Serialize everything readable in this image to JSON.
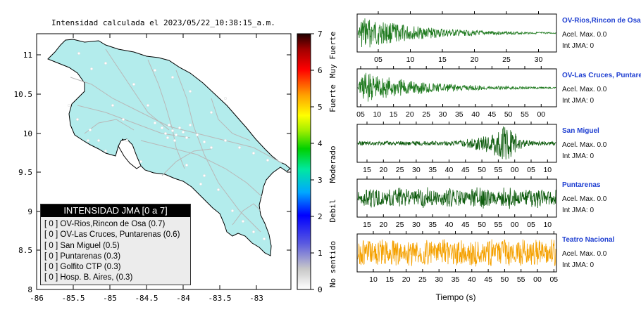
{
  "map": {
    "title": "Intensidad calculada el 2023/05/22_10:38:15_a.m.",
    "xticks": [
      "-86",
      "-85.5",
      "-85",
      "-84.5",
      "-84",
      "-83.5",
      "-83"
    ],
    "yticks": [
      "11",
      "10.5",
      "10",
      "9.5",
      "9",
      "8.5",
      "8"
    ],
    "colors": {
      "land": "#b3ecec",
      "roads": "#b8b8b8",
      "border": "#000000"
    }
  },
  "colorbar": {
    "ticks": [
      "7",
      "6",
      "5",
      "4",
      "3",
      "2",
      "1",
      "0"
    ],
    "labels": [
      "Muy Fuerte",
      "Fuerte",
      "Moderado",
      "Debil",
      "No sentido"
    ]
  },
  "legend": {
    "title": "INTENSIDAD JMA [0 a 7]",
    "items": [
      "[ 0 ]  OV-Rios,Rincon de Osa (0.7)",
      "[ 0 ]  OV-Las Cruces, Puntarenas (0.6)",
      "[ 0 ]  San Miguel (0.5)",
      "[ 0 ]  Puntarenas (0.3)",
      "[ 0 ]  Golfito CTP (0.3)",
      "[ 0 ]  Hosp. B. Aires, (0.3)"
    ]
  },
  "traces": [
    {
      "name": "OV-Rios,Rincon de Osa",
      "accel": "Acel. Max. 0.0",
      "jma": "Int JMA: 0",
      "ticks": [
        "05",
        "10",
        "15",
        "20",
        "25",
        "30"
      ],
      "color": "#1f7a1f",
      "envelope": "decay"
    },
    {
      "name": "OV-Las Cruces, Puntarenas",
      "accel": "Acel. Max. 0.0",
      "jma": "Int JMA: 0",
      "ticks": [
        "05",
        "10",
        "15",
        "20",
        "25",
        "30",
        "35",
        "40",
        "45",
        "50",
        "55",
        "00"
      ],
      "color": "#1f7a1f",
      "envelope": "decay"
    },
    {
      "name": "San Miguel",
      "accel": "Acel. Max. 0.0",
      "jma": "Int JMA: 0",
      "ticks": [
        "15",
        "20",
        "25",
        "30",
        "35",
        "40",
        "45",
        "50",
        "55",
        "00",
        "05",
        "10"
      ],
      "color": "#0e5c0e",
      "envelope": "late"
    },
    {
      "name": "Puntarenas",
      "accel": "Acel. Max. 0.0",
      "jma": "Int JMA: 0",
      "ticks": [
        "15",
        "20",
        "25",
        "30",
        "35",
        "40",
        "45",
        "50",
        "55",
        "00",
        "05",
        "10"
      ],
      "color": "#0e5c0e",
      "envelope": "noise"
    },
    {
      "name": "Teatro Nacional",
      "accel": "Acel. Max. 0.0",
      "jma": "Int JMA: 0",
      "ticks": [
        "10",
        "15",
        "20",
        "25",
        "30",
        "35",
        "40",
        "45",
        "50",
        "55",
        "00",
        "05"
      ],
      "color": "#f5a100",
      "envelope": "band"
    }
  ],
  "xlabel": "Tiempo (s)",
  "chart_data": {
    "type": "line",
    "title": "Intensidad calculada el 2023/05/22_10:38:15_a.m.",
    "xlabel": "Tiempo (s)",
    "series": [
      {
        "name": "OV-Rios,Rincon de Osa",
        "peak_accel": 0.0,
        "jma_intensity": 0
      },
      {
        "name": "OV-Las Cruces, Puntarenas",
        "peak_accel": 0.0,
        "jma_intensity": 0
      },
      {
        "name": "San Miguel",
        "peak_accel": 0.0,
        "jma_intensity": 0
      },
      {
        "name": "Puntarenas",
        "peak_accel": 0.0,
        "jma_intensity": 0
      },
      {
        "name": "Teatro Nacional",
        "peak_accel": 0.0,
        "jma_intensity": 0
      }
    ],
    "map_xlim": [
      -86,
      -82.6
    ],
    "map_ylim": [
      8,
      11.3
    ],
    "colorbar_range": [
      0,
      7
    ]
  }
}
